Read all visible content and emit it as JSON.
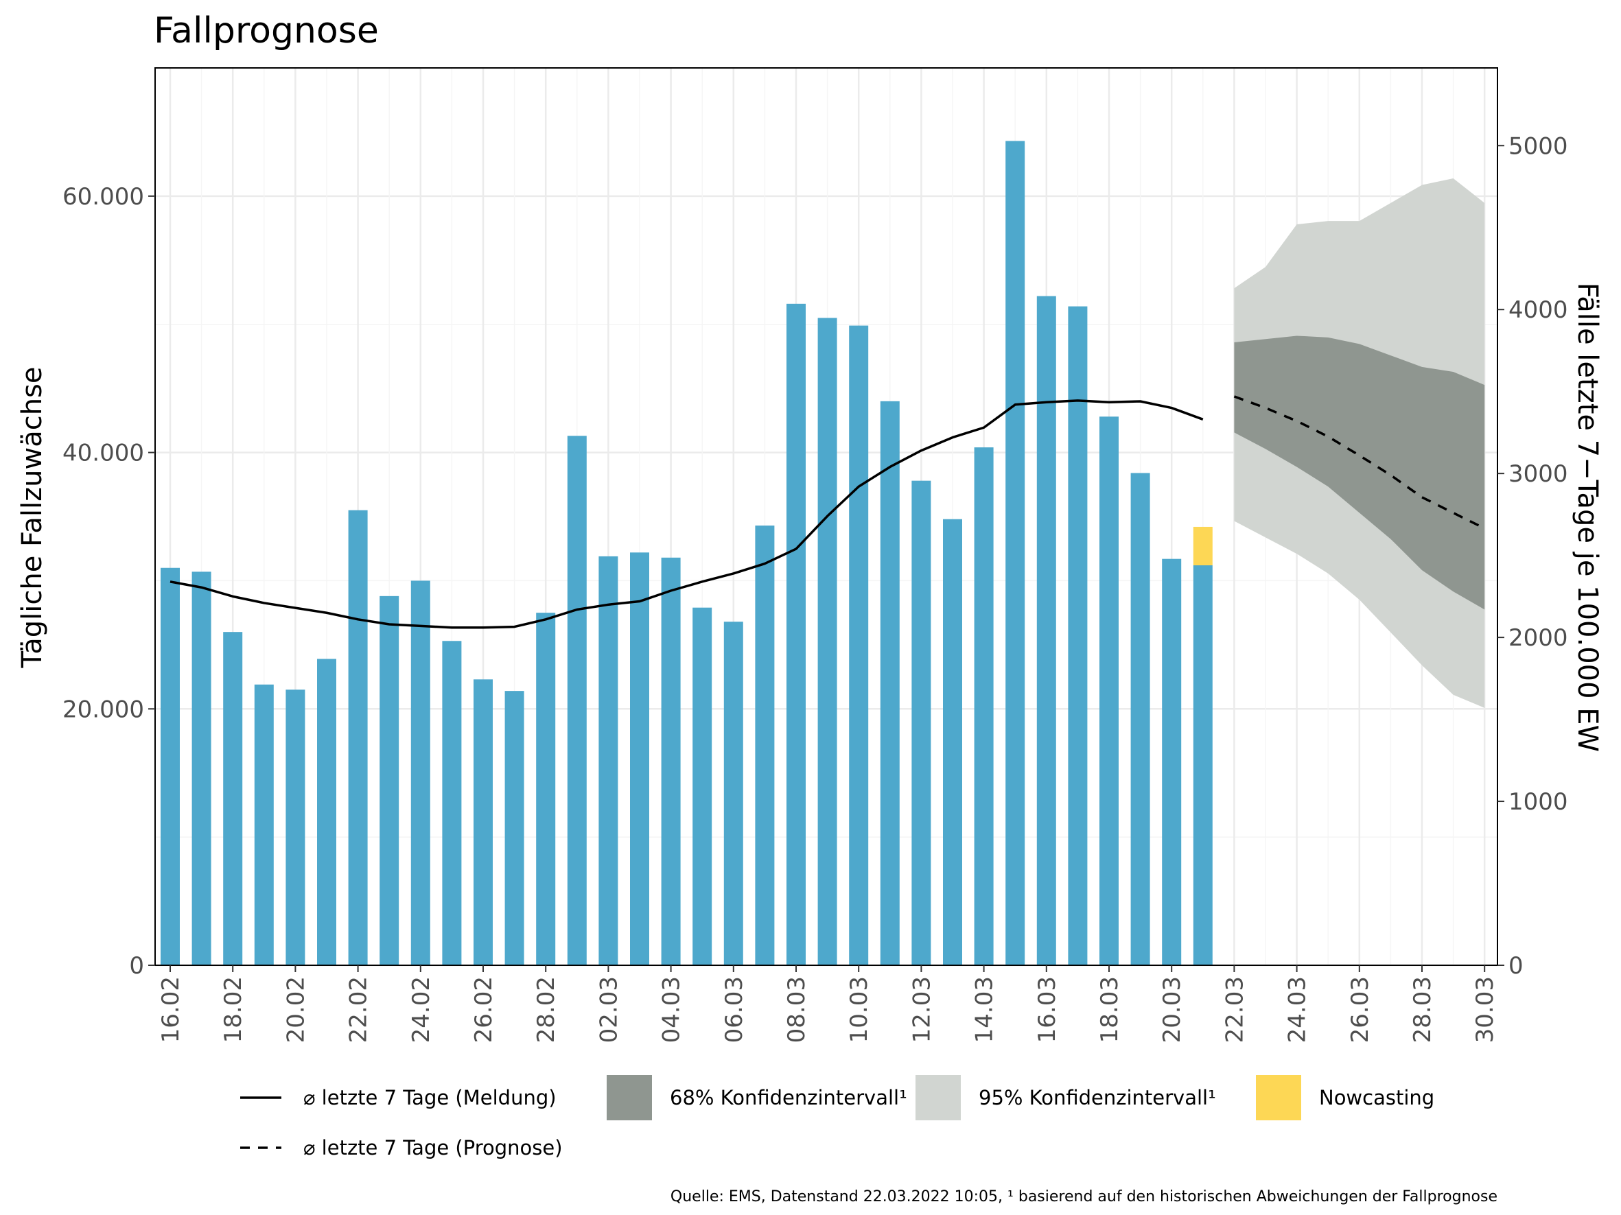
{
  "chart_data": {
    "type": "bar",
    "title": "Fallprognose",
    "ylabel_left": "Tägliche Fallzuwächse",
    "ylabel_right": "Fälle letzte 7−Tage je 100.000 EW",
    "ylim_left": [
      0,
      70000
    ],
    "ylim_right": [
      0,
      5474
    ],
    "yticks_left": [
      0,
      20000,
      40000,
      60000
    ],
    "ytick_labels_left": [
      "0",
      "20.000",
      "40.000",
      "60.000"
    ],
    "yticks_right": [
      0,
      1000,
      2000,
      3000,
      4000,
      5000
    ],
    "ytick_labels_right": [
      "0",
      "1000",
      "2000",
      "3000",
      "4000",
      "5000"
    ],
    "x_dates": [
      "16.02",
      "17.02",
      "18.02",
      "19.02",
      "20.02",
      "21.02",
      "22.02",
      "23.02",
      "24.02",
      "25.02",
      "26.02",
      "27.02",
      "28.02",
      "01.03",
      "02.03",
      "03.03",
      "04.03",
      "05.03",
      "06.03",
      "07.03",
      "08.03",
      "09.03",
      "10.03",
      "11.03",
      "12.03",
      "13.03",
      "14.03",
      "15.03",
      "16.03",
      "17.03",
      "18.03",
      "19.03",
      "20.03",
      "21.03",
      "22.03",
      "23.03",
      "24.03",
      "25.03",
      "26.03",
      "27.03",
      "28.03",
      "29.03",
      "30.03"
    ],
    "x_tick_labels": [
      "16.02",
      "18.02",
      "20.02",
      "22.02",
      "24.02",
      "26.02",
      "28.02",
      "02.03",
      "04.03",
      "06.03",
      "08.03",
      "10.03",
      "12.03",
      "14.03",
      "16.03",
      "18.03",
      "20.03",
      "22.03",
      "24.03",
      "26.03",
      "28.03",
      "30.03"
    ],
    "grid": true,
    "colors": {
      "bars": "#4ea8cc",
      "nowcasting": "#fdd755",
      "ci68": "#8f9690",
      "ci95": "#d1d5d1",
      "line": "#000000",
      "grid_major": "#ebebeb",
      "grid_minor": "#f5f5f5"
    },
    "series": [
      {
        "name": "Tägliche Fallzuwächse",
        "type": "bar",
        "x": [
          "16.02",
          "17.02",
          "18.02",
          "19.02",
          "20.02",
          "21.02",
          "22.02",
          "23.02",
          "24.02",
          "25.02",
          "26.02",
          "27.02",
          "28.02",
          "01.03",
          "02.03",
          "03.03",
          "04.03",
          "05.03",
          "06.03",
          "07.03",
          "08.03",
          "09.03",
          "10.03",
          "11.03",
          "12.03",
          "13.03",
          "14.03",
          "15.03",
          "16.03",
          "17.03",
          "18.03",
          "19.03",
          "20.03",
          "21.03"
        ],
        "values": [
          31000,
          30700,
          26000,
          21900,
          21500,
          23900,
          35500,
          28800,
          30000,
          25300,
          22300,
          21400,
          27500,
          41300,
          31900,
          32200,
          31800,
          27900,
          26800,
          34300,
          51600,
          50500,
          49900,
          44000,
          37800,
          34800,
          40400,
          64300,
          52200,
          51400,
          42800,
          38400,
          31700,
          31200
        ]
      },
      {
        "name": "Nowcasting",
        "type": "bar-stack",
        "x": [
          "21.03"
        ],
        "values": [
          3000
        ]
      },
      {
        "name": "⌀ letzte 7 Tage (Meldung)",
        "type": "line",
        "axis": "right",
        "x": [
          "16.02",
          "17.02",
          "18.02",
          "19.02",
          "20.02",
          "21.02",
          "22.02",
          "23.02",
          "24.02",
          "25.02",
          "26.02",
          "27.02",
          "28.02",
          "01.03",
          "02.03",
          "03.03",
          "04.03",
          "05.03",
          "06.03",
          "07.03",
          "08.03",
          "09.03",
          "10.03",
          "11.03",
          "12.03",
          "13.03",
          "14.03",
          "15.03",
          "16.03",
          "17.03",
          "18.03",
          "19.03",
          "20.03",
          "21.03"
        ],
        "values": [
          2340,
          2305,
          2250,
          2210,
          2180,
          2150,
          2110,
          2080,
          2070,
          2060,
          2060,
          2065,
          2110,
          2170,
          2200,
          2220,
          2285,
          2340,
          2390,
          2450,
          2540,
          2740,
          2920,
          3040,
          3140,
          3220,
          3280,
          3420,
          3435,
          3445,
          3435,
          3440,
          3400,
          3330
        ]
      },
      {
        "name": "⌀ letzte 7 Tage (Prognose)",
        "type": "line-dashed",
        "axis": "right",
        "x": [
          "22.03",
          "23.03",
          "24.03",
          "25.03",
          "26.03",
          "27.03",
          "28.03",
          "29.03",
          "30.03"
        ],
        "values": [
          3470,
          3400,
          3320,
          3225,
          3110,
          2990,
          2855,
          2760,
          2665
        ]
      },
      {
        "name": "68% Konfidenzintervall¹",
        "type": "band",
        "axis": "right",
        "x": [
          "22.03",
          "23.03",
          "24.03",
          "25.03",
          "26.03",
          "27.03",
          "28.03",
          "29.03",
          "30.03"
        ],
        "lower": [
          3250,
          3150,
          3040,
          2920,
          2760,
          2600,
          2410,
          2280,
          2170
        ],
        "upper": [
          3800,
          3820,
          3840,
          3830,
          3790,
          3720,
          3650,
          3620,
          3540
        ]
      },
      {
        "name": "95% Konfidenzintervall¹",
        "type": "band",
        "axis": "right",
        "x": [
          "22.03",
          "23.03",
          "24.03",
          "25.03",
          "26.03",
          "27.03",
          "28.03",
          "29.03",
          "30.03"
        ],
        "lower": [
          2710,
          2610,
          2510,
          2390,
          2230,
          2030,
          1830,
          1650,
          1570
        ],
        "upper": [
          4130,
          4260,
          4520,
          4540,
          4540,
          4650,
          4760,
          4800,
          4650
        ]
      }
    ],
    "legend": {
      "placement": "bottom",
      "items": [
        {
          "label": "⌀ letzte 7 Tage (Meldung)",
          "kind": "line"
        },
        {
          "label": "68% Konfidenzintervall¹",
          "kind": "fill-ci68"
        },
        {
          "label": "95% Konfidenzintervall¹",
          "kind": "fill-ci95"
        },
        {
          "label": "Nowcasting",
          "kind": "fill-nowcasting"
        },
        {
          "label": "⌀ letzte 7 Tage (Prognose)",
          "kind": "dashed"
        }
      ]
    },
    "caption": "Quelle: EMS, Datenstand 22.03.2022 10:05, ¹ basierend auf den historischen Abweichungen der Fallprognose"
  }
}
